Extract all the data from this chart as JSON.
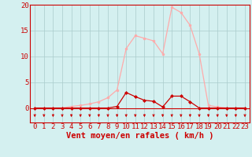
{
  "x_labels": [
    0,
    1,
    2,
    3,
    4,
    5,
    6,
    7,
    8,
    9,
    10,
    11,
    12,
    13,
    14,
    15,
    16,
    17,
    18,
    19,
    20,
    21,
    22,
    23
  ],
  "rafales_y": [
    0,
    0,
    0,
    0,
    0.3,
    0.5,
    0.8,
    1.2,
    2.0,
    3.5,
    11.5,
    14.0,
    13.5,
    13.0,
    10.5,
    19.5,
    18.5,
    16.0,
    10.5,
    0.5,
    0.2,
    0,
    0,
    0
  ],
  "moyen_y": [
    0,
    0,
    0,
    0,
    0,
    0,
    0,
    0,
    0,
    0.3,
    3.0,
    2.2,
    1.5,
    1.3,
    0.2,
    2.3,
    2.3,
    1.2,
    0,
    0,
    0,
    0,
    0,
    0
  ],
  "rafales_color": "#ffaaaa",
  "moyen_color": "#cc0000",
  "background_color": "#d4f0f0",
  "grid_color": "#aacccc",
  "arrow_color": "#cc0000",
  "xlabel": "Vent moyen/en rafales ( km/h )",
  "ylim": [
    0,
    20
  ],
  "yticks": [
    0,
    5,
    10,
    15,
    20
  ],
  "tick_fontsize": 6.5,
  "label_fontsize": 7.5
}
